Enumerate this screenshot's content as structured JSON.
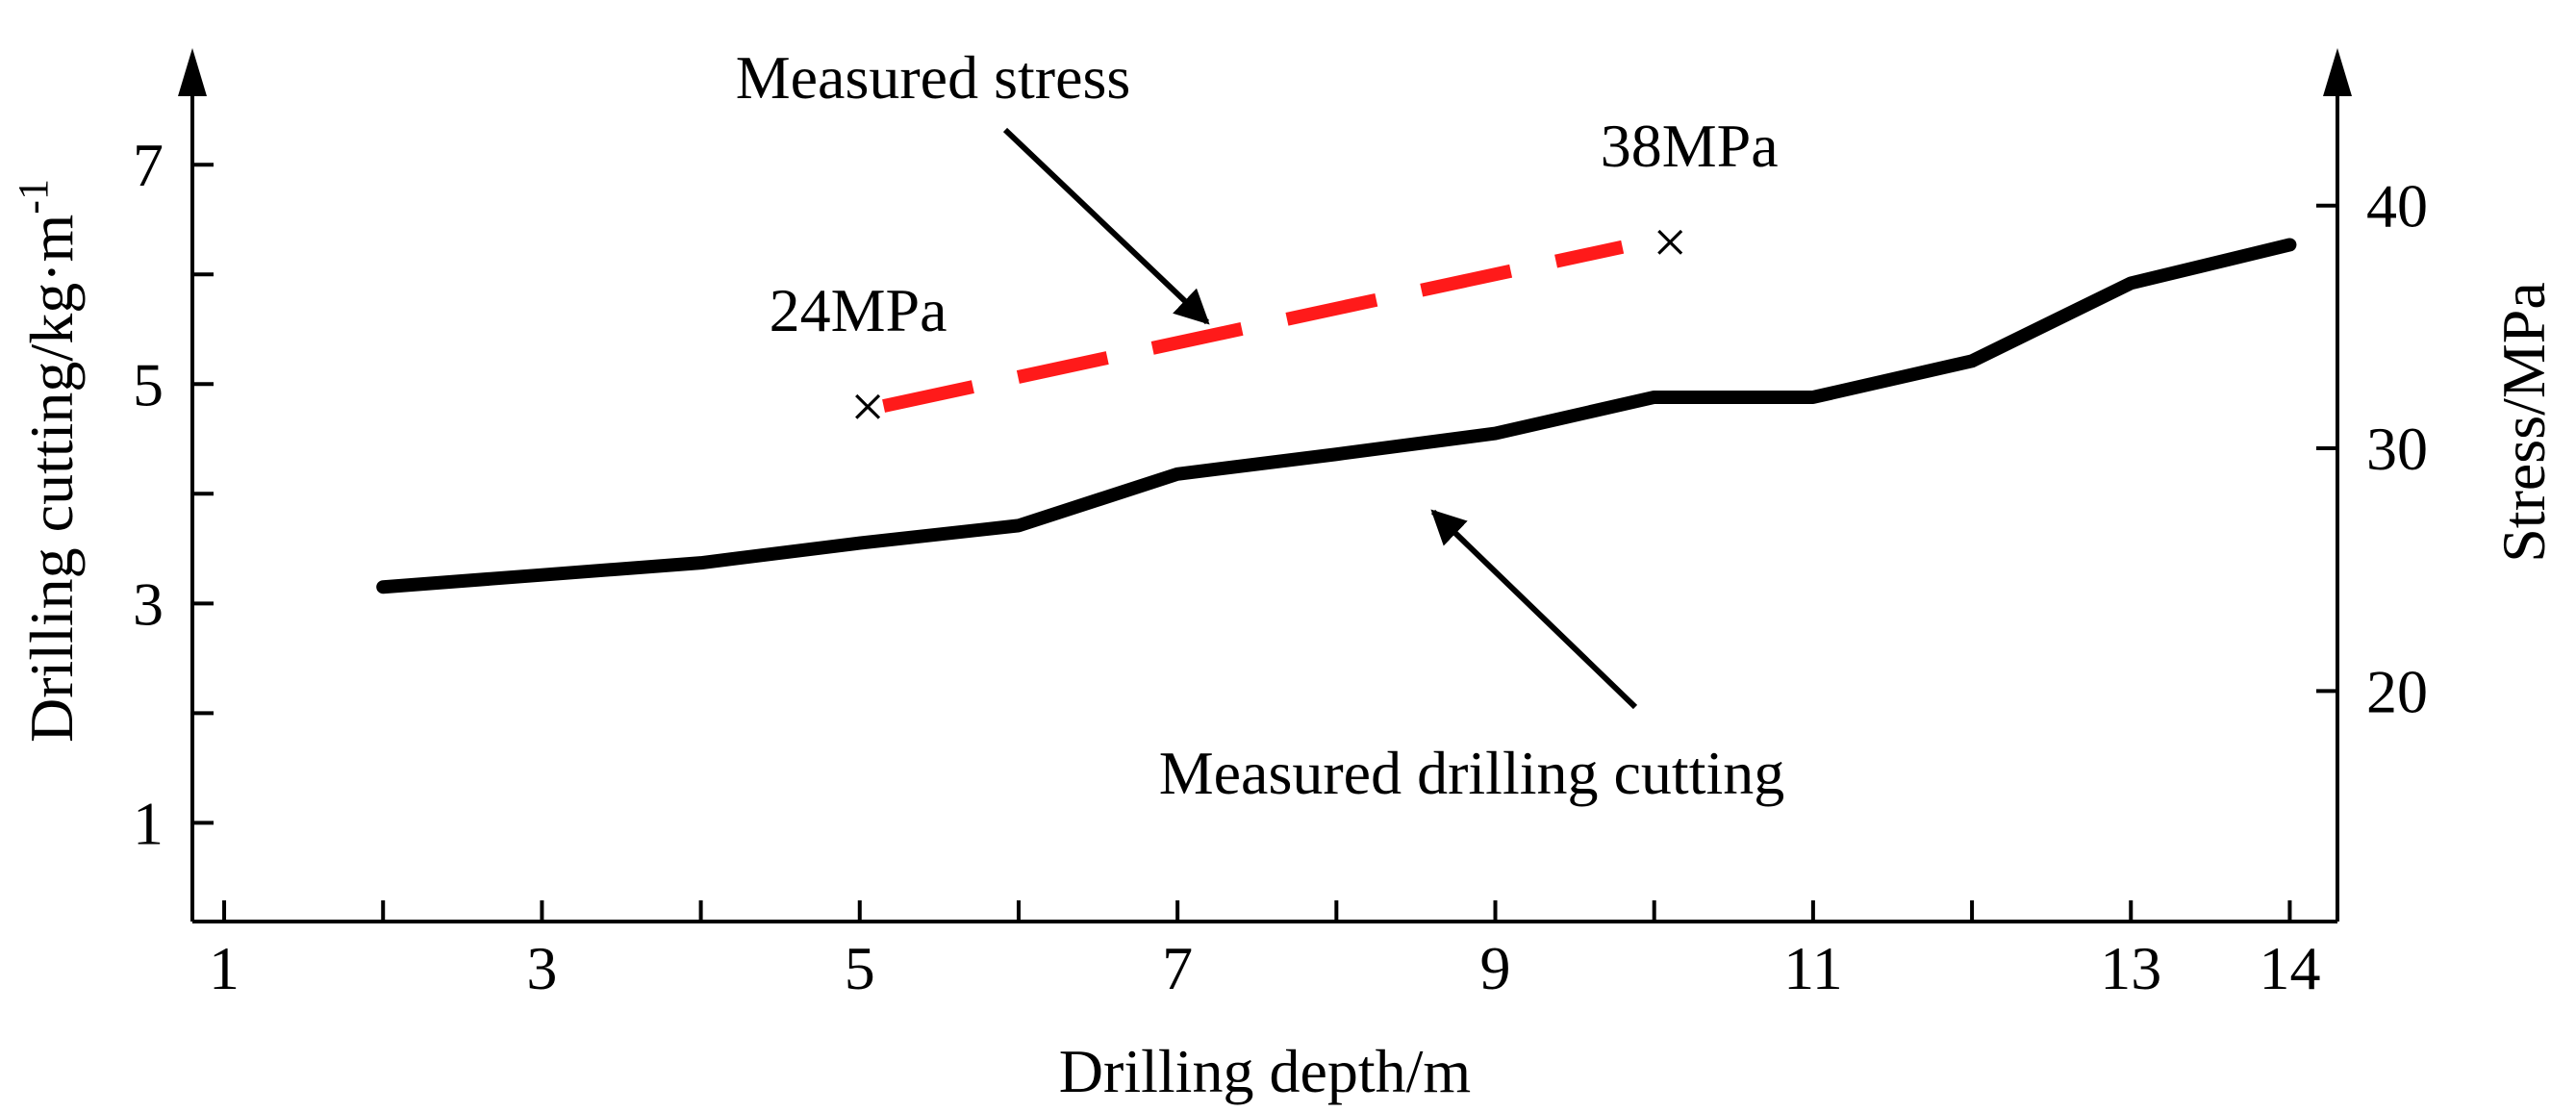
{
  "chart_data": {
    "type": "line",
    "title": "",
    "xlabel": "Drilling depth/m",
    "ylabel": "Drilling cutting/kg·m",
    "ylabel_sup": "-1",
    "y2label": "Stress/MPa",
    "xlim": [
      0.8,
      14.3
    ],
    "ylim": [
      0.1,
      7.8
    ],
    "y2lim": [
      10.5,
      45.3
    ],
    "x_ticks": [
      1,
      3,
      5,
      7,
      9,
      11,
      13,
      14
    ],
    "x_minor_ticks": [
      2,
      4,
      6,
      8,
      10,
      12
    ],
    "y_ticks": [
      1,
      3,
      5,
      7
    ],
    "y_minor_ticks": [
      2,
      4,
      6
    ],
    "y2_ticks": [
      20,
      30,
      40
    ],
    "series": [
      {
        "name": "Measured drilling cutting",
        "axis": "left",
        "color": "#000000",
        "style": "solid",
        "x": [
          2,
          3,
          4,
          5,
          6,
          7,
          8,
          9,
          10,
          11,
          12,
          13,
          14
        ],
        "y": [
          3.15,
          3.26,
          3.37,
          3.55,
          3.71,
          4.18,
          4.36,
          4.55,
          4.88,
          4.88,
          5.21,
          5.92,
          6.27
        ]
      },
      {
        "name": "Measured stress",
        "axis": "left",
        "color": "#ff1a1a",
        "style": "dashed",
        "x": [
          5.15,
          9.8
        ],
        "y": [
          4.8,
          6.25
        ]
      }
    ],
    "markers": [
      {
        "x": 5.05,
        "y": 4.8,
        "symbol": "×",
        "label": "24MPa"
      },
      {
        "x": 10.1,
        "y": 6.3,
        "symbol": "×",
        "label": "38MPa"
      }
    ],
    "annotations": [
      {
        "text": "Measured stress",
        "target": "Measured stress"
      },
      {
        "text": "Measured drilling cutting",
        "target": "Measured drilling cutting"
      }
    ]
  }
}
